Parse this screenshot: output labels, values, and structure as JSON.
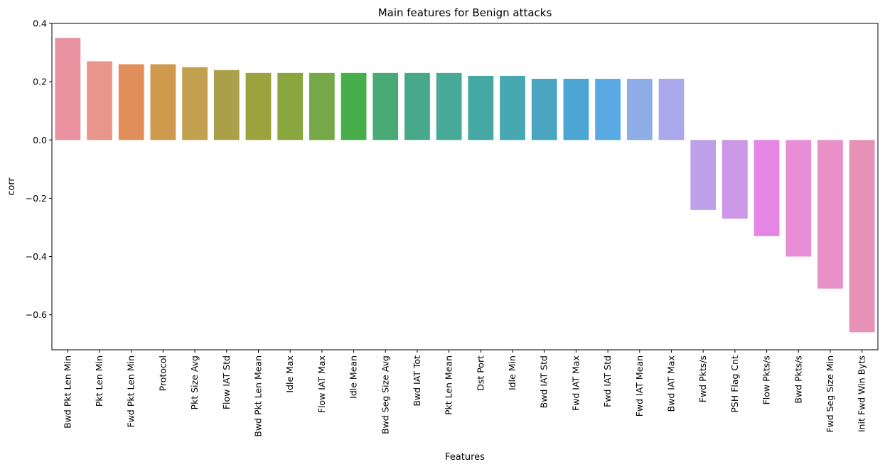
{
  "chart_data": {
    "type": "bar",
    "title": "Main features for Benign attacks",
    "xlabel": "Features",
    "ylabel": "corr",
    "ylim": [
      -0.72,
      0.4
    ],
    "yticks": [
      0.4,
      0.2,
      0.0,
      -0.2,
      -0.4,
      -0.6
    ],
    "ytick_labels": [
      "0.4",
      "0.2",
      "0.0",
      "−0.2",
      "−0.4",
      "−0.6"
    ],
    "grid": false,
    "categories": [
      "Bwd Pkt Len Min",
      "Pkt Len Min",
      "Fwd Pkt Len Min",
      "Protocol",
      "Pkt Size Avg",
      "Flow IAT Std",
      "Bwd Pkt Len Mean",
      "Idle Max",
      "Flow IAT Max",
      "Idle Mean",
      "Bwd Seg Size Avg",
      "Bwd IAT Tot",
      "Pkt Len Mean",
      "Dst Port",
      "Idle Min",
      "Bwd IAT Std",
      "Fwd IAT Max",
      "Fwd IAT Std",
      "Fwd IAT Mean",
      "Bwd IAT Max",
      "Fwd Pkts/s",
      "PSH Flag Cnt",
      "Flow Pkts/s",
      "Bwd Pkts/s",
      "Fwd Seg Size Min",
      "Init Fwd Win Byts"
    ],
    "values": [
      0.35,
      0.27,
      0.26,
      0.26,
      0.25,
      0.24,
      0.23,
      0.23,
      0.23,
      0.23,
      0.23,
      0.23,
      0.23,
      0.22,
      0.22,
      0.21,
      0.21,
      0.21,
      0.21,
      0.21,
      -0.24,
      -0.27,
      -0.33,
      -0.4,
      -0.51,
      -0.66
    ],
    "colors": [
      "#e9919f",
      "#e8968a",
      "#e28e5a",
      "#cf9a4e",
      "#c2a04f",
      "#aba04a",
      "#9ca33d",
      "#8aa63f",
      "#76a84a",
      "#48ad4b",
      "#49aa75",
      "#48a98a",
      "#47aa98",
      "#46a8a5",
      "#47a8b2",
      "#4aa6c0",
      "#4ca5d3",
      "#59aae2",
      "#8fade6",
      "#aaa7eb",
      "#bea0e8",
      "#cc97e7",
      "#e586e5",
      "#e88ed6",
      "#e890c8",
      "#e891b6"
    ]
  }
}
